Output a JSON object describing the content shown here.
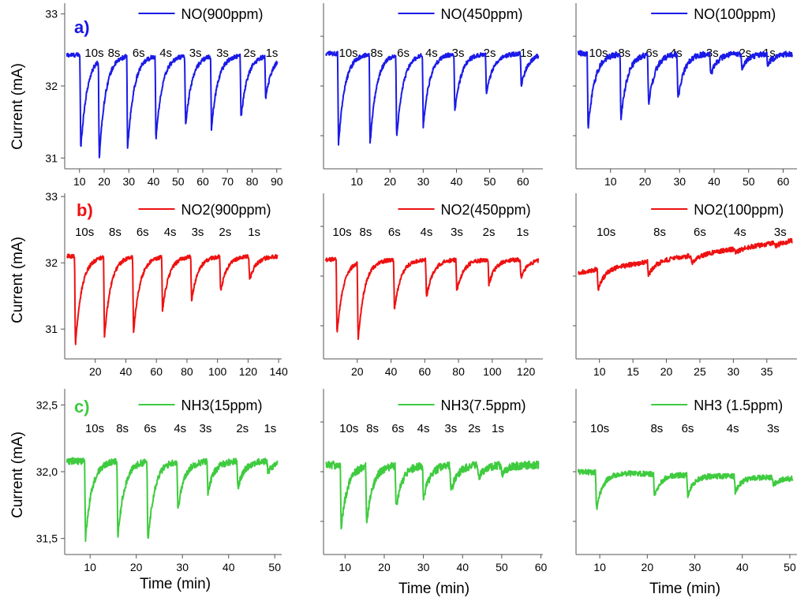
{
  "figure": {
    "ylabel": "Current (mA)",
    "xlabel": "Time (min)",
    "row_labels": [
      {
        "text": "a)",
        "color": "#1616e6"
      },
      {
        "text": "b)",
        "color": "#ee1111"
      },
      {
        "text": "c)",
        "color": "#3fcb3f"
      }
    ]
  },
  "chart_data": [
    {
      "type": "line",
      "row": 0,
      "col": 0,
      "legend": "NO(900ppm)",
      "color": "#1a1ae8",
      "xlim": [
        4,
        92
      ],
      "ylim": [
        30.85,
        33.15
      ],
      "xticks": [
        10,
        20,
        30,
        40,
        50,
        60,
        70,
        80,
        90
      ],
      "yticks": [
        31,
        32,
        33
      ],
      "baseline": 32.43,
      "noise": 0.03,
      "pulses": [
        {
          "label": "10s",
          "x": 10.5,
          "depth": 31.12,
          "label_x": 16
        },
        {
          "label": "8s",
          "x": 18,
          "depth": 31.07,
          "label_x": 24
        },
        {
          "label": "6s",
          "x": 29.5,
          "depth": 31.14,
          "label_x": 34
        },
        {
          "label": "4s",
          "x": 41,
          "depth": 31.27,
          "label_x": 45
        },
        {
          "label": "3s",
          "x": 53,
          "depth": 31.45,
          "label_x": 57
        },
        {
          "label": "3s",
          "x": 63.5,
          "depth": 31.42,
          "label_x": 68
        },
        {
          "label": "2s",
          "x": 75.5,
          "depth": 31.56,
          "label_x": 79
        },
        {
          "label": "1s",
          "x": 85.5,
          "depth": 31.85,
          "label_x": 88
        }
      ]
    },
    {
      "type": "line",
      "row": 0,
      "col": 1,
      "legend": "NO(450ppm)",
      "color": "#1a1ae8",
      "xlim": [
        0,
        66
      ],
      "ylim": [
        30.85,
        33.15
      ],
      "xticks": [
        10,
        20,
        30,
        40,
        50,
        60
      ],
      "yticks": [],
      "baseline": 32.45,
      "noise": 0.03,
      "pulses": [
        {
          "label": "10s",
          "x": 4.5,
          "depth": 31.18,
          "label_x": 7.5
        },
        {
          "label": "8s",
          "x": 14,
          "depth": 31.2,
          "label_x": 16
        },
        {
          "label": "6s",
          "x": 22,
          "depth": 31.28,
          "label_x": 24
        },
        {
          "label": "4s",
          "x": 30,
          "depth": 31.45,
          "label_x": 32.5
        },
        {
          "label": "3s",
          "x": 39.5,
          "depth": 31.65,
          "label_x": 40.5
        },
        {
          "label": "2s",
          "x": 49,
          "depth": 31.88,
          "label_x": 50
        },
        {
          "label": "1s",
          "x": 59.5,
          "depth": 32.0,
          "label_x": 61
        }
      ]
    },
    {
      "type": "line",
      "row": 0,
      "col": 2,
      "legend": "NO(100ppm)",
      "color": "#1a1ae8",
      "xlim": [
        0,
        64
      ],
      "ylim": [
        30.85,
        33.15
      ],
      "xticks": [
        10,
        20,
        30,
        40,
        50,
        60
      ],
      "yticks": [],
      "baseline": 32.45,
      "noise": 0.04,
      "pulses": [
        {
          "label": "10s",
          "x": 3.5,
          "depth": 31.4,
          "label_x": 6.5
        },
        {
          "label": "8s",
          "x": 13,
          "depth": 31.55,
          "label_x": 14
        },
        {
          "label": "6s",
          "x": 21,
          "depth": 31.75,
          "label_x": 22
        },
        {
          "label": "4s",
          "x": 29.5,
          "depth": 31.82,
          "label_x": 29
        },
        {
          "label": "3s",
          "x": 39,
          "depth": 32.15,
          "label_x": 39.5
        },
        {
          "label": "2s",
          "x": 48,
          "depth": 32.25,
          "label_x": 49
        },
        {
          "label": "1s",
          "x": 55.5,
          "depth": 32.3,
          "label_x": 56
        }
      ]
    },
    {
      "type": "line",
      "row": 1,
      "col": 0,
      "legend": "NO2(900ppm)",
      "color": "#ee1111",
      "xlim": [
        0,
        142
      ],
      "ylim": [
        30.55,
        33.05
      ],
      "xticks": [
        20,
        40,
        60,
        80,
        100,
        120,
        140
      ],
      "yticks": [
        31,
        32,
        33
      ],
      "baseline": 32.1,
      "noise": 0.03,
      "pulses": [
        {
          "label": "10s",
          "x": 7,
          "depth": 30.75,
          "label_x": 13
        },
        {
          "label": "8s",
          "x": 26,
          "depth": 30.88,
          "label_x": 33
        },
        {
          "label": "6s",
          "x": 45,
          "depth": 30.95,
          "label_x": 51
        },
        {
          "label": "4s",
          "x": 64,
          "depth": 31.3,
          "label_x": 69
        },
        {
          "label": "3s",
          "x": 83,
          "depth": 31.43,
          "label_x": 87
        },
        {
          "label": "2s",
          "x": 102,
          "depth": 31.57,
          "label_x": 105
        },
        {
          "label": "1s",
          "x": 121,
          "depth": 31.75,
          "label_x": 124
        }
      ]
    },
    {
      "type": "line",
      "row": 1,
      "col": 1,
      "legend": "NO2(450ppm)",
      "color": "#ee1111",
      "xlim": [
        0,
        130
      ],
      "ylim": [
        30.55,
        33.05
      ],
      "xticks": [
        20,
        40,
        60,
        80,
        100,
        120
      ],
      "yticks": [],
      "baseline": 32.05,
      "noise": 0.03,
      "pulses": [
        {
          "label": "10s",
          "x": 8,
          "depth": 30.93,
          "label_x": 11
        },
        {
          "label": "8s",
          "x": 20.5,
          "depth": 30.88,
          "label_x": 25
        },
        {
          "label": "6s",
          "x": 42,
          "depth": 31.3,
          "label_x": 42
        },
        {
          "label": "4s",
          "x": 61,
          "depth": 31.48,
          "label_x": 61
        },
        {
          "label": "3s",
          "x": 79,
          "depth": 31.57,
          "label_x": 79
        },
        {
          "label": "2s",
          "x": 98,
          "depth": 31.68,
          "label_x": 98
        },
        {
          "label": "1s",
          "x": 117,
          "depth": 31.78,
          "label_x": 118
        }
      ]
    },
    {
      "type": "line",
      "row": 1,
      "col": 2,
      "legend": "NO2(100ppm)",
      "color": "#ee1111",
      "xlim": [
        6.5,
        39.5
      ],
      "ylim": [
        30.55,
        33.05
      ],
      "xticks": [
        10,
        15,
        20,
        25,
        30,
        35
      ],
      "yticks": [],
      "drift": [
        31.85,
        32.35
      ],
      "noise": 0.035,
      "pulses": [
        {
          "label": "10s",
          "x": 9.8,
          "depth": 31.6,
          "label_x": 11
        },
        {
          "label": "8s",
          "x": 17.3,
          "depth": 31.8,
          "label_x": 19
        },
        {
          "label": "6s",
          "x": 23.8,
          "depth": 32.0,
          "label_x": 25
        },
        {
          "label": "4s",
          "x": 30.3,
          "depth": 32.15,
          "label_x": 31
        },
        {
          "label": "3s",
          "x": 36.3,
          "depth": 32.25,
          "label_x": 37
        }
      ]
    },
    {
      "type": "line",
      "row": 2,
      "col": 0,
      "legend": "NH3(15ppm)",
      "color": "#3fcb3f",
      "xlim": [
        4.5,
        51.5
      ],
      "ylim": [
        31.38,
        32.62
      ],
      "xticks": [
        10,
        20,
        30,
        40,
        50
      ],
      "yticks": [
        31.5,
        32.0,
        32.5
      ],
      "ytick_labels": [
        "31,5",
        "32,0",
        "32,5"
      ],
      "baseline": 32.08,
      "noise": 0.025,
      "pulses": [
        {
          "label": "10s",
          "x": 9,
          "depth": 31.5,
          "label_x": 11
        },
        {
          "label": "8s",
          "x": 16,
          "depth": 31.5,
          "label_x": 17
        },
        {
          "label": "6s",
          "x": 22.5,
          "depth": 31.47,
          "label_x": 23
        },
        {
          "label": "4s",
          "x": 29,
          "depth": 31.72,
          "label_x": 29.5
        },
        {
          "label": "3s",
          "x": 35.5,
          "depth": 31.85,
          "label_x": 35
        },
        {
          "label": "2s",
          "x": 42,
          "depth": 31.88,
          "label_x": 43
        },
        {
          "label": "1s",
          "x": 48.5,
          "depth": 32.0,
          "label_x": 49
        }
      ]
    },
    {
      "type": "line",
      "row": 2,
      "col": 1,
      "legend": "NH3(7.5ppm)",
      "color": "#3fcb3f",
      "xlim": [
        4.5,
        60.5
      ],
      "ylim": [
        31.38,
        32.62
      ],
      "xticks": [
        10,
        20,
        30,
        40,
        50,
        60
      ],
      "yticks": [],
      "baseline": 32.05,
      "noise": 0.03,
      "pulses": [
        {
          "label": "10s",
          "x": 9,
          "depth": 31.58,
          "label_x": 11
        },
        {
          "label": "8s",
          "x": 15.5,
          "depth": 31.63,
          "label_x": 17
        },
        {
          "label": "6s",
          "x": 23,
          "depth": 31.73,
          "label_x": 23.5
        },
        {
          "label": "4s",
          "x": 30,
          "depth": 31.8,
          "label_x": 30
        },
        {
          "label": "3s",
          "x": 37,
          "depth": 31.85,
          "label_x": 37
        },
        {
          "label": "2s",
          "x": 44,
          "depth": 31.95,
          "label_x": 43
        },
        {
          "label": "1s",
          "x": 50,
          "depth": 31.98,
          "label_x": 49
        }
      ]
    },
    {
      "type": "line",
      "row": 2,
      "col": 2,
      "legend": "NH3 (1.5ppm)",
      "color": "#3fcb3f",
      "xlim": [
        5,
        51.5
      ],
      "ylim": [
        31.38,
        32.62
      ],
      "xticks": [
        10,
        20,
        30,
        40,
        50
      ],
      "yticks": [],
      "drift": [
        32.0,
        31.95
      ],
      "noise": 0.02,
      "pulses": [
        {
          "label": "10s",
          "x": 9.3,
          "depth": 31.72,
          "label_x": 10
        },
        {
          "label": "8s",
          "x": 21.5,
          "depth": 31.82,
          "label_x": 22
        },
        {
          "label": "6s",
          "x": 28.5,
          "depth": 31.82,
          "label_x": 28.5
        },
        {
          "label": "4s",
          "x": 38.5,
          "depth": 31.85,
          "label_x": 38
        },
        {
          "label": "3s",
          "x": 46.5,
          "depth": 31.9,
          "label_x": 46.5
        }
      ]
    }
  ]
}
